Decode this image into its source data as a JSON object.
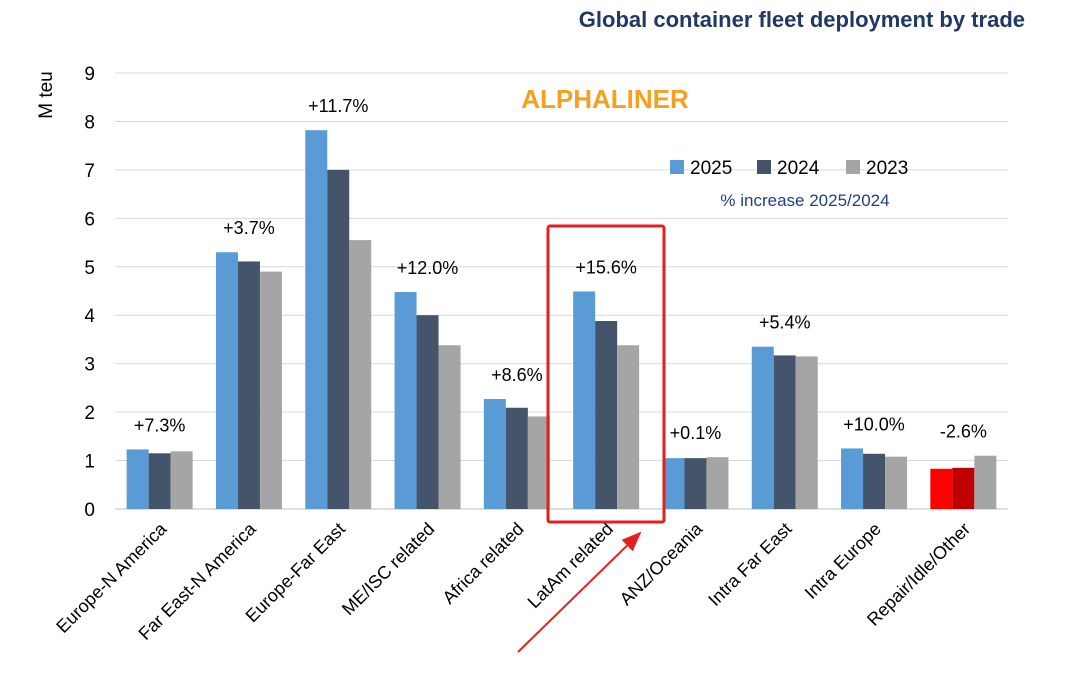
{
  "chart_data": {
    "type": "bar",
    "title": "Global container fleet deployment by trade",
    "watermark": "ALPHALINER",
    "ylabel": "M teu",
    "ylim": [
      0,
      9
    ],
    "yticks": [
      "0",
      "1",
      "2",
      "3",
      "4",
      "5",
      "6",
      "7",
      "8",
      "9"
    ],
    "grid": true,
    "legend_position": "top-right",
    "legend_note": "% increase 2025/2024",
    "categories": [
      "Europe-N America",
      "Far East-N America",
      "Europe-Far East",
      "ME/ISC related",
      "Africa related",
      "LatAm related",
      "ANZ/Oceania",
      "Intra Far East",
      "Intra Europe",
      "Repair/Idle/Other"
    ],
    "series": [
      {
        "name": "2025",
        "color": "#5b9bd5",
        "values": [
          1.23,
          5.3,
          7.82,
          4.48,
          2.27,
          4.49,
          1.05,
          3.35,
          1.25,
          0.83
        ]
      },
      {
        "name": "2024",
        "color": "#44546a",
        "values": [
          1.15,
          5.11,
          7.0,
          4.0,
          2.09,
          3.88,
          1.05,
          3.17,
          1.14,
          0.85
        ]
      },
      {
        "name": "2023",
        "color": "#a5a5a5",
        "values": [
          1.19,
          4.9,
          5.55,
          3.38,
          1.91,
          3.38,
          1.07,
          3.15,
          1.08,
          1.1
        ]
      }
    ],
    "annotations": [
      "+7.3%",
      "+3.7%",
      "+11.7%",
      "+12.0%",
      "+8.6%",
      "+15.6%",
      "+0.1%",
      "+5.4%",
      "+10.0%",
      "-2.6%"
    ],
    "highlight": {
      "category": "LatAm related",
      "color": "#e3211c"
    },
    "special_colors": {
      "category": "Repair/Idle/Other",
      "2025": "#ff0000",
      "2024": "#c00000"
    }
  }
}
